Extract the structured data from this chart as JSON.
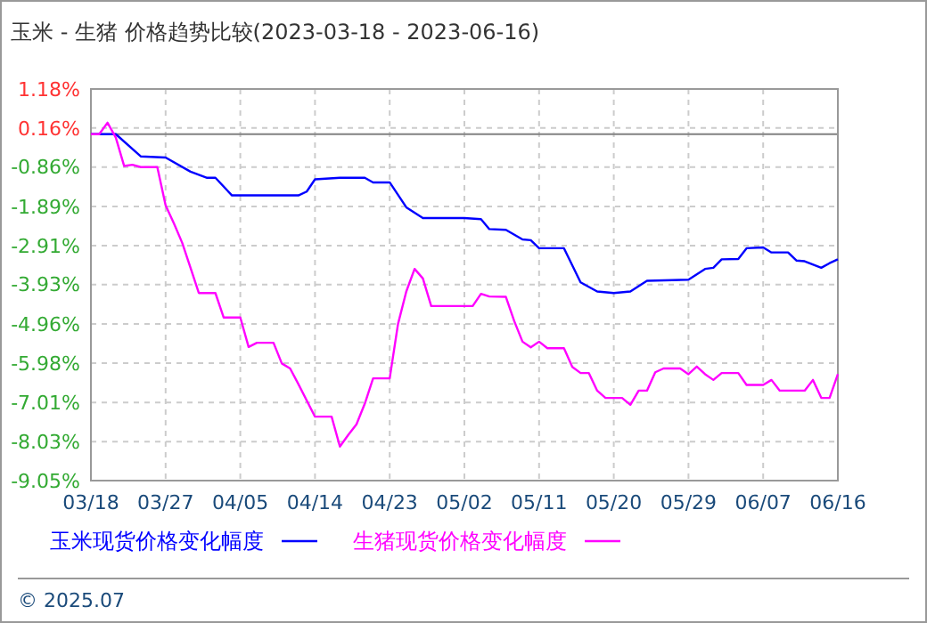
{
  "chart_data": {
    "type": "line",
    "title": "玉米 - 生猪 价格趋势比较(2023-03-18 - 2023-06-16)",
    "xlim": [
      "2023-03-18",
      "2023-06-16"
    ],
    "xticks": [
      {
        "value": "2023-03-18",
        "label": "03/18"
      },
      {
        "value": "2023-03-27",
        "label": "03/27"
      },
      {
        "value": "2023-04-05",
        "label": "04/05"
      },
      {
        "value": "2023-04-14",
        "label": "04/14"
      },
      {
        "value": "2023-04-23",
        "label": "04/23"
      },
      {
        "value": "2023-05-02",
        "label": "05/02"
      },
      {
        "value": "2023-05-11",
        "label": "05/11"
      },
      {
        "value": "2023-05-20",
        "label": "05/20"
      },
      {
        "value": "2023-05-29",
        "label": "05/29"
      },
      {
        "value": "2023-06-07",
        "label": "06/07"
      },
      {
        "value": "2023-06-16",
        "label": "06/16"
      }
    ],
    "ylim": [
      -9.05,
      1.18
    ],
    "yticks": [
      {
        "value": 1.18,
        "label": "1.18%"
      },
      {
        "value": 0.16,
        "label": "0.16%"
      },
      {
        "value": -0.86,
        "label": "-0.86%"
      },
      {
        "value": -1.89,
        "label": "-1.89%"
      },
      {
        "value": -2.91,
        "label": "-2.91%"
      },
      {
        "value": -3.93,
        "label": "-3.93%"
      },
      {
        "value": -4.96,
        "label": "-4.96%"
      },
      {
        "value": -5.98,
        "label": "-5.98%"
      },
      {
        "value": -7.01,
        "label": "-7.01%"
      },
      {
        "value": -8.03,
        "label": "-8.03%"
      },
      {
        "value": -9.05,
        "label": "-9.05%"
      }
    ],
    "grid": true,
    "legend": "bottom",
    "line_style": "solid",
    "ref_lines": [
      {
        "axis": "y",
        "value": 0,
        "color": "#808080"
      }
    ],
    "annotations": [
      "© 2025.07"
    ],
    "series": [
      {
        "name": "玉米现货价格变化幅度",
        "color": "#0000ff",
        "x": [
          "2023-03-18",
          "2023-03-21",
          "2023-03-24",
          "2023-03-27",
          "2023-03-30",
          "2023-04-01",
          "2023-04-02",
          "2023-04-04",
          "2023-04-12",
          "2023-04-13",
          "2023-04-14",
          "2023-04-17",
          "2023-04-20",
          "2023-04-21",
          "2023-04-23",
          "2023-04-25",
          "2023-04-27",
          "2023-05-02",
          "2023-05-04",
          "2023-05-05",
          "2023-05-07",
          "2023-05-09",
          "2023-05-10",
          "2023-05-11",
          "2023-05-14",
          "2023-05-16",
          "2023-05-18",
          "2023-05-20",
          "2023-05-22",
          "2023-05-24",
          "2023-05-29",
          "2023-05-31",
          "2023-06-01",
          "2023-06-02",
          "2023-06-04",
          "2023-06-05",
          "2023-06-07",
          "2023-06-08",
          "2023-06-10",
          "2023-06-11",
          "2023-06-12",
          "2023-06-14",
          "2023-06-15",
          "2023-06-16"
        ],
        "values": [
          0,
          0,
          -0.58,
          -0.61,
          -0.98,
          -1.14,
          -1.14,
          -1.6,
          -1.6,
          -1.5,
          -1.18,
          -1.14,
          -1.14,
          -1.26,
          -1.26,
          -1.91,
          -2.19,
          -2.19,
          -2.22,
          -2.48,
          -2.5,
          -2.75,
          -2.77,
          -2.98,
          -2.98,
          -3.87,
          -4.11,
          -4.15,
          -4.11,
          -3.83,
          -3.8,
          -3.52,
          -3.49,
          -3.27,
          -3.26,
          -2.98,
          -2.96,
          -3.09,
          -3.09,
          -3.3,
          -3.32,
          -3.49,
          -3.37,
          -3.27
        ]
      },
      {
        "name": "生猪现货价格变化幅度",
        "color": "#ff00ff",
        "x": [
          "2023-03-18",
          "2023-03-19",
          "2023-03-20",
          "2023-03-21",
          "2023-03-22",
          "2023-03-23",
          "2023-03-24",
          "2023-03-26",
          "2023-03-27",
          "2023-03-28",
          "2023-03-29",
          "2023-03-30",
          "2023-03-31",
          "2023-04-02",
          "2023-04-03",
          "2023-04-05",
          "2023-04-06",
          "2023-04-07",
          "2023-04-09",
          "2023-04-10",
          "2023-04-11",
          "2023-04-12",
          "2023-04-14",
          "2023-04-16",
          "2023-04-17",
          "2023-04-18",
          "2023-04-19",
          "2023-04-20",
          "2023-04-21",
          "2023-04-23",
          "2023-04-24",
          "2023-04-25",
          "2023-04-26",
          "2023-04-27",
          "2023-04-28",
          "2023-05-03",
          "2023-05-04",
          "2023-05-05",
          "2023-05-07",
          "2023-05-08",
          "2023-05-09",
          "2023-05-10",
          "2023-05-11",
          "2023-05-12",
          "2023-05-14",
          "2023-05-15",
          "2023-05-16",
          "2023-05-17",
          "2023-05-18",
          "2023-05-19",
          "2023-05-21",
          "2023-05-22",
          "2023-05-23",
          "2023-05-24",
          "2023-05-25",
          "2023-05-26",
          "2023-05-28",
          "2023-05-29",
          "2023-05-30",
          "2023-05-31",
          "2023-06-01",
          "2023-06-02",
          "2023-06-04",
          "2023-06-05",
          "2023-06-07",
          "2023-06-08",
          "2023-06-09",
          "2023-06-12",
          "2023-06-13",
          "2023-06-14",
          "2023-06-15",
          "2023-06-16"
        ],
        "values": [
          0,
          0,
          0.3,
          -0.09,
          -0.83,
          -0.8,
          -0.86,
          -0.86,
          -1.86,
          -2.33,
          -2.84,
          -3.49,
          -4.15,
          -4.15,
          -4.79,
          -4.79,
          -5.56,
          -5.45,
          -5.45,
          -5.99,
          -6.12,
          -6.53,
          -7.38,
          -7.38,
          -8.16,
          -7.86,
          -7.58,
          -7.04,
          -6.38,
          -6.38,
          -4.96,
          -4.11,
          -3.52,
          -3.77,
          -4.49,
          -4.49,
          -4.17,
          -4.24,
          -4.25,
          -4.88,
          -5.42,
          -5.57,
          -5.42,
          -5.59,
          -5.59,
          -6.08,
          -6.24,
          -6.24,
          -6.7,
          -6.89,
          -6.89,
          -7.07,
          -6.7,
          -6.7,
          -6.22,
          -6.12,
          -6.12,
          -6.27,
          -6.07,
          -6.27,
          -6.42,
          -6.24,
          -6.24,
          -6.55,
          -6.55,
          -6.42,
          -6.7,
          -6.7,
          -6.42,
          -6.89,
          -6.89,
          -6.27
        ]
      }
    ]
  }
}
